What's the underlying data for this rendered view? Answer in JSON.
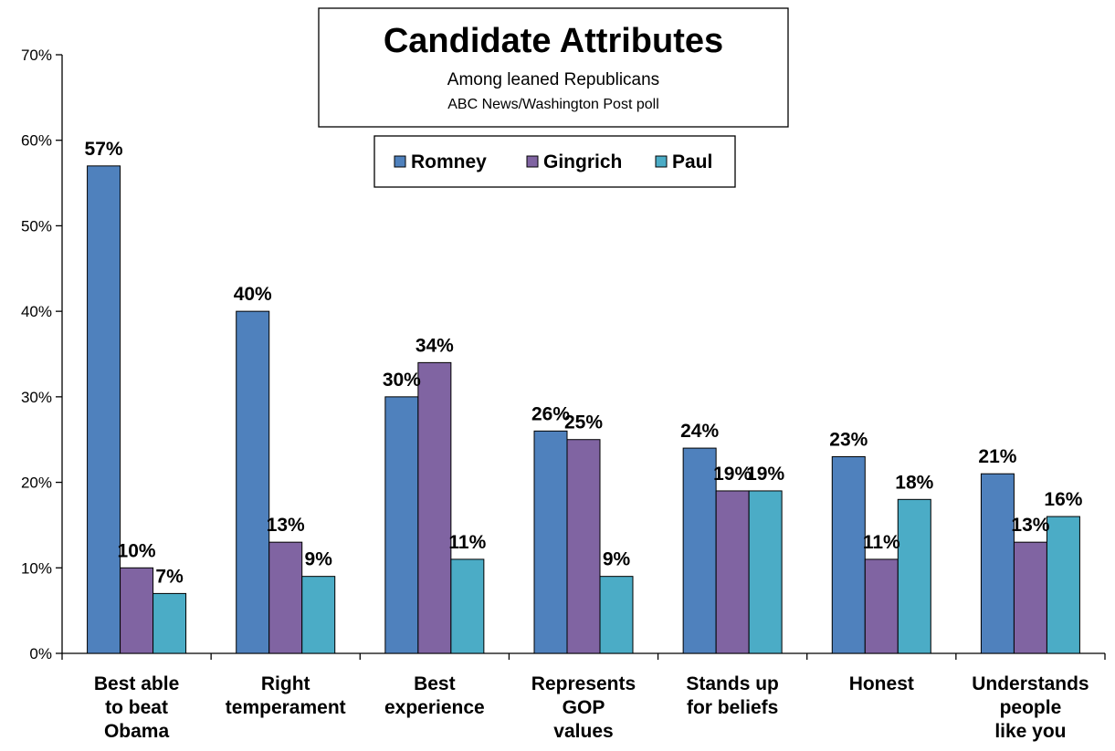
{
  "chart_data": {
    "type": "bar",
    "title": "Candidate Attributes",
    "subtitle": "Among leaned Republicans",
    "source": "ABC News/Washington Post poll",
    "xlabel": "",
    "ylabel": "",
    "ylim": [
      0,
      70
    ],
    "yticks": [
      0,
      10,
      20,
      30,
      40,
      50,
      60,
      70
    ],
    "ytick_labels": [
      "0%",
      "10%",
      "20%",
      "30%",
      "40%",
      "50%",
      "60%",
      "70%"
    ],
    "grid": false,
    "legend_position": "top-center",
    "categories": [
      [
        "Best able",
        "to beat",
        "Obama"
      ],
      [
        "Right",
        "temperament"
      ],
      [
        "Best",
        "experience"
      ],
      [
        "Represents",
        "GOP",
        "values"
      ],
      [
        "Stands up",
        "for beliefs"
      ],
      [
        "Honest"
      ],
      [
        "Understands",
        "people",
        "like you"
      ]
    ],
    "series": [
      {
        "name": "Romney",
        "color": "#4F81BD",
        "values": [
          57,
          40,
          30,
          26,
          24,
          23,
          21
        ]
      },
      {
        "name": "Gingrich",
        "color": "#8064A2",
        "values": [
          10,
          13,
          34,
          25,
          19,
          11,
          13
        ]
      },
      {
        "name": "Paul",
        "color": "#4BACC6",
        "values": [
          7,
          9,
          11,
          9,
          19,
          18,
          16
        ]
      }
    ],
    "value_suffix": "%"
  }
}
